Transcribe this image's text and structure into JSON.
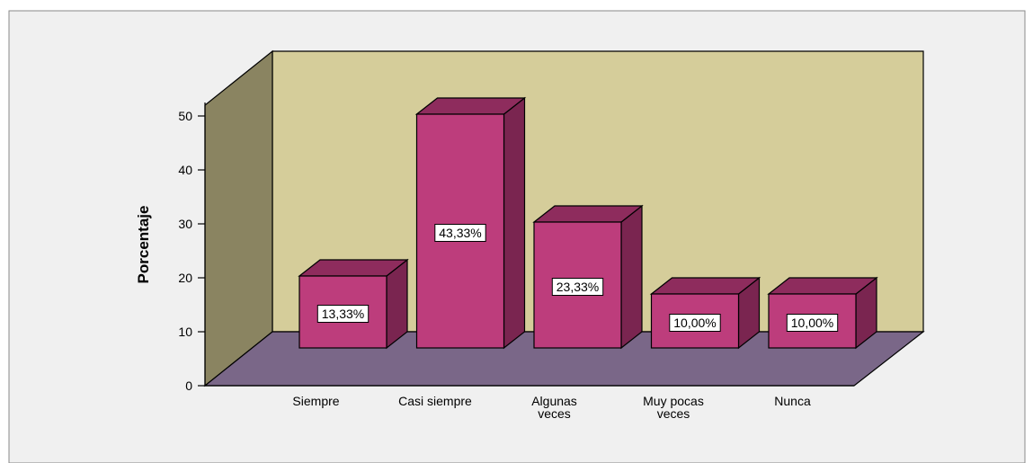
{
  "chart_data": {
    "type": "bar",
    "ylabel": "Porcentaje",
    "xlabel": "",
    "ylim": [
      0,
      50
    ],
    "yticks": [
      0,
      10,
      20,
      30,
      40,
      50
    ],
    "categories": [
      [
        "Siempre"
      ],
      [
        "Casi siempre"
      ],
      [
        "Algunas",
        "veces"
      ],
      [
        "Muy pocas",
        "veces"
      ],
      [
        "Nunca"
      ]
    ],
    "values": [
      13.33,
      43.33,
      23.33,
      10.0,
      10.0
    ],
    "data_labels": [
      "13,33%",
      "43,33%",
      "23,33%",
      "10,00%",
      "10,00%"
    ],
    "grid": false,
    "three_d": true,
    "colors": {
      "background": "#f0f0f0",
      "back_wall": "#d5cd9a",
      "side_wall": "#8a8461",
      "floor": "#7a6788",
      "bar_front": "#bd3d7c",
      "bar_side": "#7a2550",
      "bar_top": "#8e2c5d",
      "outline": "#000000"
    }
  }
}
